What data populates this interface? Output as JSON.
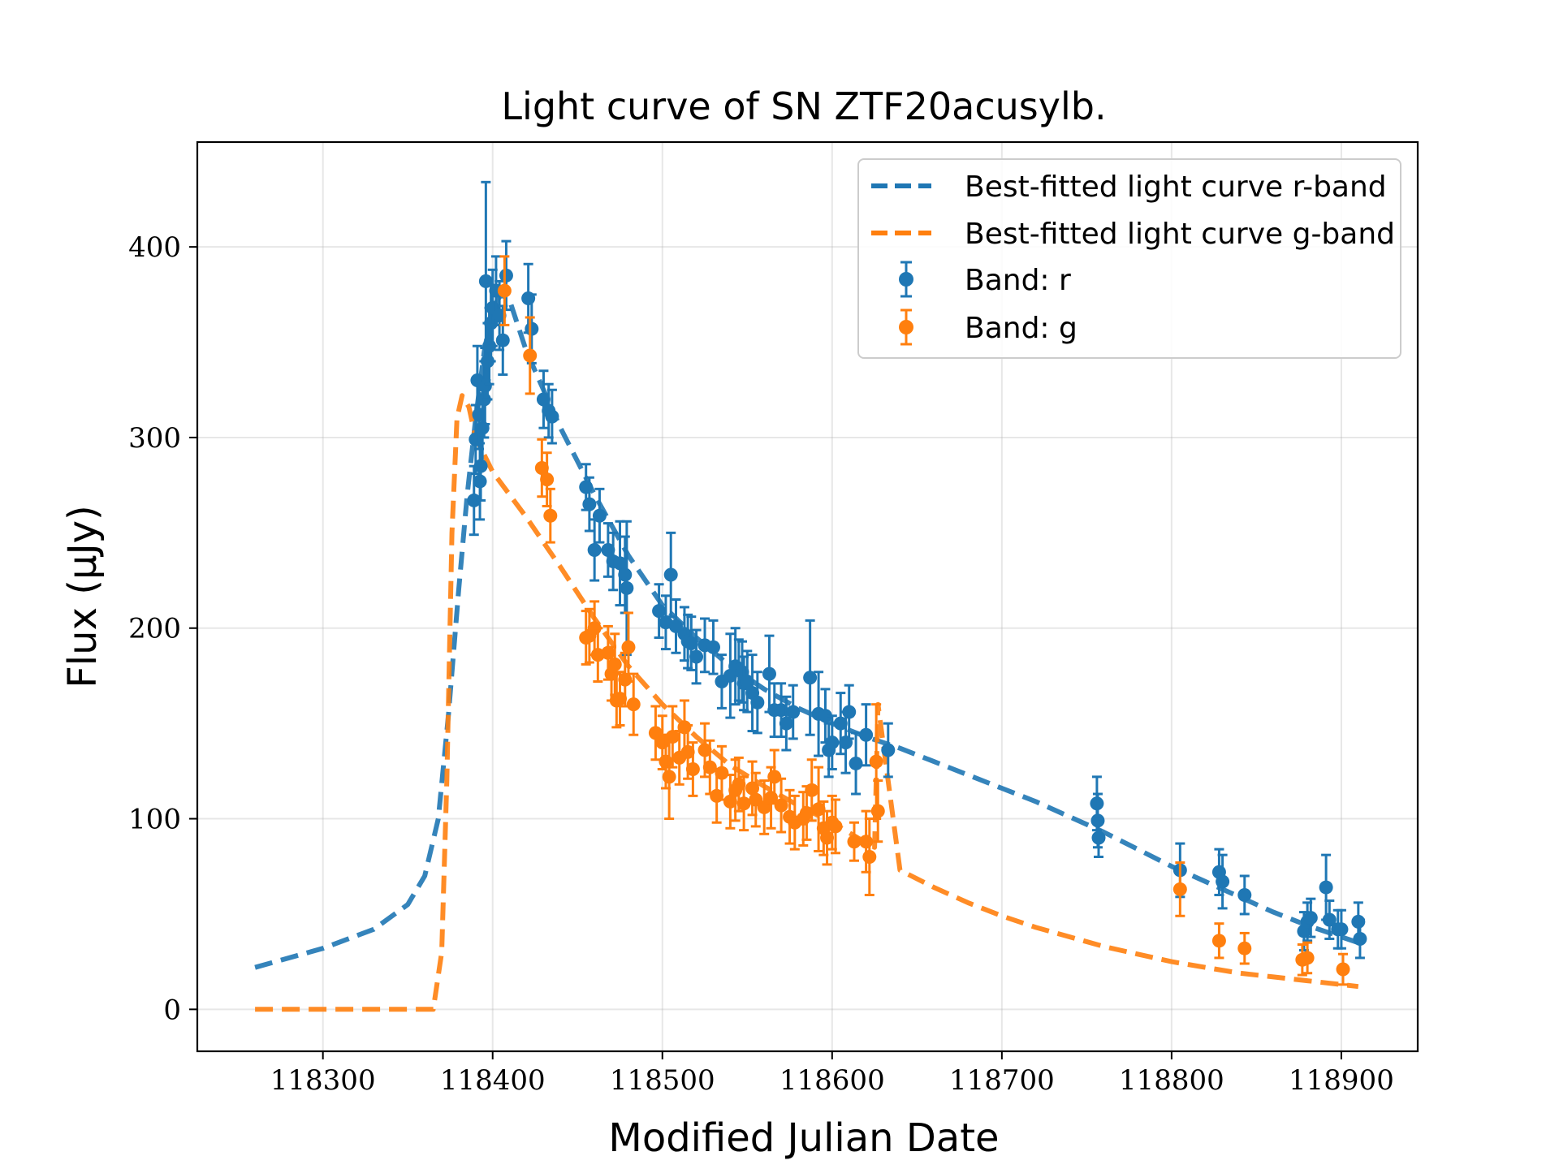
{
  "chart_data": {
    "type": "scatter",
    "title": "Light curve of SN ZTF20acusylb.",
    "xlabel": "Modified Julian Date",
    "ylabel": "Flux (μJy)",
    "xlim": [
      118226,
      118945
    ],
    "ylim": [
      -22,
      455
    ],
    "xticks": [
      "118300",
      "118400",
      "118500",
      "118600",
      "118700",
      "118800",
      "118900"
    ],
    "yticks": [
      "0",
      "100",
      "200",
      "300",
      "400"
    ],
    "grid": true,
    "legend_position": "top-right",
    "colors": {
      "r": "#1f77b4",
      "g": "#ff7f0e"
    },
    "legend": [
      "Best-fitted light curve r-band",
      "Best-fitted light curve g-band",
      "Band: r",
      "Band: g"
    ],
    "curves": [
      {
        "name": "Best-fitted light curve r-band",
        "band": "r",
        "x": [
          118260,
          118300,
          118330,
          118350,
          118360,
          118368,
          118374,
          118380,
          118385,
          118390,
          118395,
          118400,
          118405,
          118410,
          118420,
          118440,
          118460,
          118480,
          118500,
          118520,
          118540,
          118560,
          118580,
          118600,
          118620,
          118640,
          118660,
          118680,
          118700,
          118720,
          118740,
          118760,
          118780,
          118800,
          118820,
          118840,
          118860,
          118880,
          118900,
          118910
        ],
        "y": [
          22,
          32,
          42,
          55,
          70,
          100,
          155,
          220,
          270,
          310,
          345,
          368,
          375,
          372,
          345,
          305,
          270,
          238,
          212,
          195,
          180,
          168,
          158,
          150,
          143,
          137,
          130,
          123,
          116,
          109,
          101,
          93,
          84,
          75,
          67,
          59,
          51,
          44,
          38,
          35
        ]
      },
      {
        "name": "Best-fitted light curve g-band",
        "band": "g",
        "x": [
          118260,
          118300,
          118340,
          118365,
          118370,
          118373,
          118376,
          118379,
          118382,
          118386,
          118390,
          118400,
          118420,
          118440,
          118460,
          118480,
          118500,
          118520,
          118540,
          118560,
          118580,
          118600,
          118615,
          118625,
          118627,
          118640,
          118660,
          118680,
          118700,
          118720,
          118740,
          118760,
          118780,
          118800,
          118820,
          118840,
          118860,
          118880,
          118900,
          118910
        ],
        "y": [
          0,
          0,
          0,
          0,
          30,
          120,
          250,
          310,
          322,
          316,
          300,
          282,
          258,
          232,
          205,
          180,
          160,
          143,
          128,
          117,
          107,
          98,
          90,
          85,
          160,
          73,
          64,
          56,
          49,
          43,
          38,
          33,
          29,
          25,
          22,
          19,
          17,
          15,
          13,
          12
        ]
      }
    ],
    "series": [
      {
        "name": "Band: r",
        "band": "r",
        "x": [
          118389,
          118390,
          118391,
          118392,
          118392.5,
          118393,
          118394,
          118395,
          118395.5,
          118396,
          118397,
          118398,
          118399,
          118400,
          118402,
          118404,
          118406,
          118408,
          118421,
          118423,
          118430,
          118433,
          118435,
          118455,
          118457,
          118460,
          118463,
          118468,
          118471,
          118475,
          118478,
          118479,
          118498,
          118502,
          118505,
          118508,
          118513,
          118515,
          118517,
          118520,
          118525,
          118530,
          118535,
          118540,
          118543,
          118545,
          118547,
          118548,
          118550,
          118553,
          118556,
          118563,
          118566,
          118570,
          118573,
          118577,
          118587,
          118592,
          118596,
          118598,
          118600,
          118605,
          118608,
          118610,
          118614,
          118620,
          118633,
          118756,
          118756.5,
          118757,
          118805,
          118828,
          118830,
          118843,
          118878,
          118880,
          118882,
          118891,
          118893,
          118898,
          118900,
          118910,
          118911
        ],
        "y": [
          267,
          299,
          330,
          312,
          277,
          285,
          305,
          320,
          327,
          382,
          340,
          348,
          360,
          368,
          377,
          364,
          351,
          385,
          373,
          357,
          320,
          314,
          311,
          274,
          265,
          241,
          259,
          241,
          235,
          234,
          228,
          221,
          209,
          203,
          228,
          201,
          197,
          193,
          192,
          185,
          191,
          190,
          172,
          175,
          180,
          178,
          177,
          171,
          172,
          166,
          161,
          176,
          157,
          157,
          150,
          156,
          174,
          155,
          154,
          136,
          140,
          150,
          140,
          156,
          129,
          144,
          136,
          108,
          99,
          90,
          73,
          72,
          67,
          60,
          41,
          46,
          48,
          64,
          47,
          42,
          42,
          46,
          37
        ],
        "err": [
          18,
          18,
          18,
          18,
          20,
          18,
          20,
          20,
          20,
          52,
          20,
          20,
          20,
          20,
          18,
          18,
          18,
          18,
          18,
          18,
          15,
          14,
          14,
          12,
          14,
          16,
          14,
          14,
          15,
          22,
          20,
          35,
          14,
          14,
          22,
          14,
          14,
          14,
          14,
          14,
          14,
          14,
          14,
          22,
          20,
          16,
          16,
          14,
          16,
          20,
          16,
          20,
          14,
          14,
          14,
          14,
          30,
          22,
          14,
          14,
          14,
          16,
          16,
          14,
          16,
          16,
          14,
          14,
          14,
          10,
          14,
          12,
          14,
          10,
          10,
          10,
          10,
          17,
          10,
          10,
          10,
          10,
          10
        ]
      },
      {
        "name": "Band: g",
        "band": "g",
        "x": [
          118407,
          118422,
          118429,
          118432,
          118434,
          118455,
          118457,
          118460,
          118462,
          118468,
          118470,
          118472,
          118473,
          118475,
          118478,
          118480,
          118483,
          118496,
          118500,
          118502,
          118504,
          118506,
          118510,
          118513,
          118515,
          118518,
          118525,
          118528,
          118532,
          118535,
          118540,
          118543,
          118545,
          118548,
          118553,
          118555,
          118560,
          118564,
          118566,
          118570,
          118575,
          118578,
          118583,
          118585,
          118588,
          118592,
          118595,
          118597,
          118600,
          118602,
          118613,
          118620,
          118622,
          118626,
          118627,
          118805,
          118828,
          118843,
          118877,
          118880,
          118901
        ],
        "y": [
          377,
          343,
          284,
          278,
          259,
          195,
          196,
          200,
          186,
          187,
          176,
          181,
          162,
          163,
          173,
          190,
          160,
          145,
          140,
          130,
          122,
          143,
          132,
          148,
          135,
          126,
          136,
          127,
          112,
          124,
          109,
          115,
          118,
          108,
          116,
          110,
          106,
          111,
          122,
          107,
          101,
          98,
          100,
          103,
          115,
          105,
          95,
          90,
          98,
          96,
          88,
          88,
          80,
          130,
          104,
          63,
          36,
          32,
          26,
          27,
          21
        ],
        "err": [
          18,
          20,
          15,
          14,
          14,
          14,
          14,
          14,
          14,
          14,
          14,
          16,
          14,
          14,
          14,
          18,
          16,
          14,
          14,
          14,
          22,
          16,
          14,
          14,
          14,
          14,
          14,
          14,
          14,
          14,
          14,
          16,
          14,
          14,
          14,
          14,
          14,
          16,
          14,
          14,
          14,
          14,
          14,
          14,
          16,
          22,
          14,
          14,
          14,
          14,
          10,
          16,
          20,
          30,
          16,
          14,
          9,
          8,
          8,
          8,
          8
        ]
      }
    ]
  }
}
